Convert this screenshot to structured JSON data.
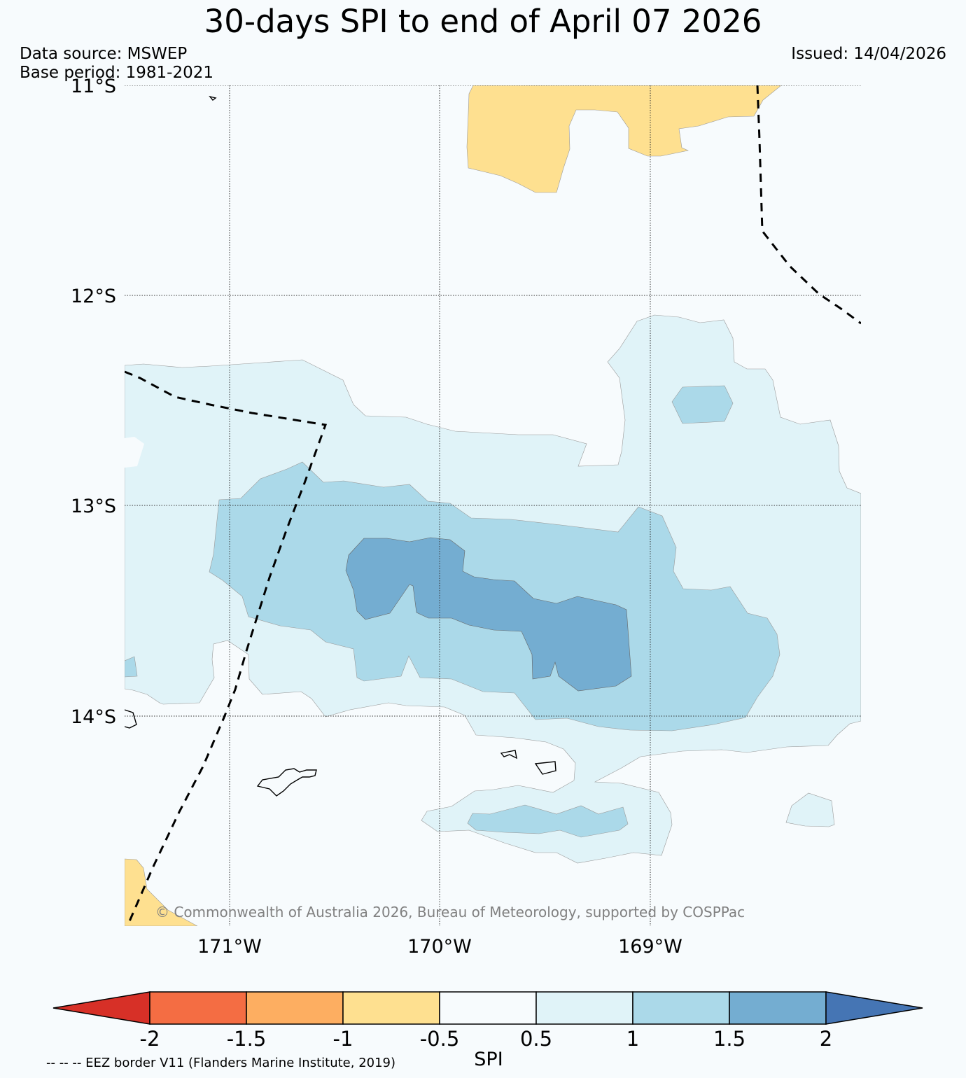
{
  "title": "30-days SPI to end of April 07 2026",
  "data_source": "Data source: MSWEP",
  "base_period": "Base period: 1981-2021",
  "issued": "Issued: 14/04/2026",
  "copyright": "© Commonwealth of Australia 2026, Bureau of Meteorology, supported by COSPPac",
  "lat_labels": [
    "11°S",
    "12°S",
    "13°S",
    "14°S"
  ],
  "lon_labels": [
    "171°W",
    "170°W",
    "169°W"
  ],
  "colorbar": {
    "label": "SPI",
    "ticks": [
      "-2",
      "-1.5",
      "-1",
      "-0.5",
      "0.5",
      "1",
      "1.5",
      "2"
    ],
    "colors": {
      "below_-2": "#d73027",
      "-2_to_-1.5": "#f46d43",
      "-1.5_to_-1": "#fdae61",
      "-1_to_-0.5": "#fee090",
      "-0.5_to_0.5": "#f7fbfd",
      "0.5_to_1": "#e0f3f8",
      "1_to_1.5": "#abd9e9",
      "1.5_to_2": "#74add1",
      "above_2": "#4575b4"
    }
  },
  "legend_note": "-- -- -- EEZ border V11 (Flanders Marine Institute, 2019)"
}
